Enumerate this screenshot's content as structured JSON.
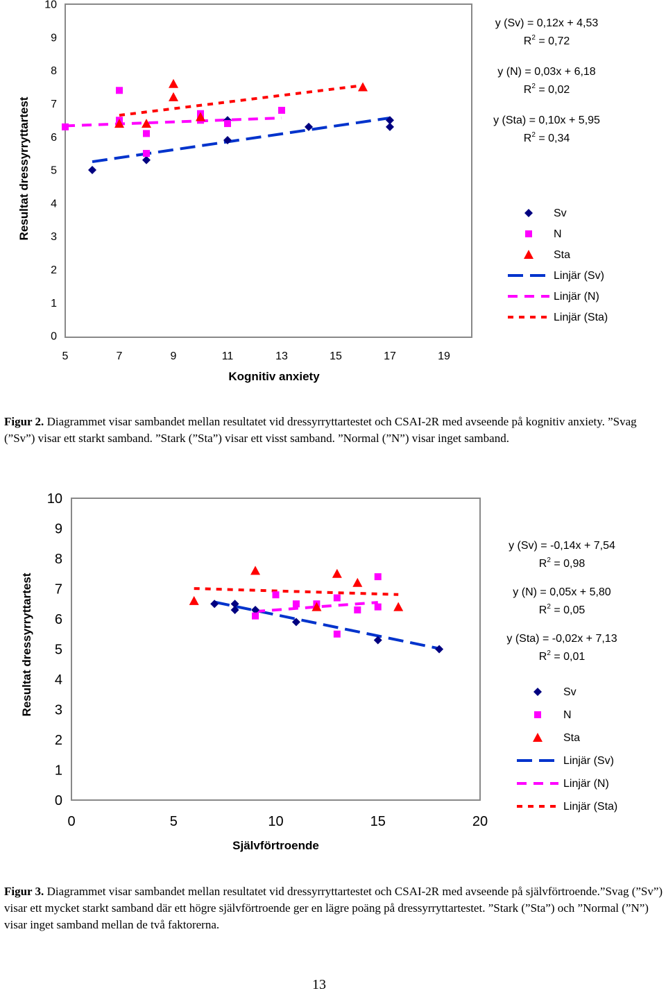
{
  "charts": [
    {
      "type": "scatter",
      "xlabel": "Kognitiv anxiety",
      "ylabel": "Resultat dressyrryttartest",
      "xlim": [
        5,
        19
      ],
      "ylim": [
        0,
        10
      ],
      "xticks": [
        5,
        7,
        9,
        11,
        13,
        15,
        17,
        19
      ],
      "yticks": [
        0,
        1,
        2,
        3,
        4,
        5,
        6,
        7,
        8,
        9,
        10
      ],
      "colors": {
        "Sv": "#000080",
        "N": "#FF00FF",
        "Sta": "#FF0000",
        "trend_Sv": "#0033CC",
        "trend_N": "#FF00FF",
        "trend_Sta": "#FF0000"
      },
      "series": [
        {
          "name": "Sv",
          "marker": "diamond",
          "color": "#000080",
          "points": [
            [
              6,
              5.0
            ],
            [
              8,
              5.3
            ],
            [
              11,
              6.5
            ],
            [
              11,
              5.9
            ],
            [
              14,
              6.3
            ],
            [
              17,
              6.5
            ],
            [
              17,
              6.3
            ]
          ]
        },
        {
          "name": "N",
          "marker": "square",
          "color": "#FF00FF",
          "points": [
            [
              5,
              6.3
            ],
            [
              7,
              7.4
            ],
            [
              7,
              6.5
            ],
            [
              8,
              6.1
            ],
            [
              8,
              5.5
            ],
            [
              10,
              6.7
            ],
            [
              10,
              6.5
            ],
            [
              11,
              6.4
            ],
            [
              13,
              6.8
            ]
          ]
        },
        {
          "name": "Sta",
          "marker": "triangle",
          "color": "#FF0000",
          "points": [
            [
              7,
              6.4
            ],
            [
              8,
              6.4
            ],
            [
              9,
              7.6
            ],
            [
              9,
              7.2
            ],
            [
              10,
              6.6
            ],
            [
              16,
              7.5
            ]
          ]
        }
      ],
      "trendlines": [
        {
          "name": "Linjär (Sv)",
          "color": "#0033CC",
          "dash": "long",
          "x": [
            6,
            17
          ],
          "slope": 0.12,
          "intercept": 4.53
        },
        {
          "name": "Linjär (N)",
          "color": "#FF00FF",
          "dash": "medium",
          "x": [
            5,
            13
          ],
          "slope": 0.03,
          "intercept": 6.18
        },
        {
          "name": "Linjär (Sta)",
          "color": "#FF0000",
          "dash": "short",
          "x": [
            7,
            16
          ],
          "slope": 0.1,
          "intercept": 5.95
        }
      ],
      "equations": [
        {
          "eq": "y (Sv) = 0,12x + 4,53",
          "r2_prefix": "R",
          "r2_sup": "2",
          "r2_value": " = 0,72"
        },
        {
          "eq": "y (N) = 0,03x + 6,18",
          "r2_prefix": "R",
          "r2_sup": "2",
          "r2_value": " = 0,02"
        },
        {
          "eq": "y (Sta) = 0,10x + 5,95",
          "r2_prefix": "R",
          "r2_sup": "2",
          "r2_value": " = 0,34"
        }
      ],
      "legend": [
        "Sv",
        "N",
        "Sta",
        "Linjär (Sv)",
        "Linjär (N)",
        "Linjär (Sta)"
      ]
    },
    {
      "type": "scatter",
      "xlabel": "Självförtroende",
      "ylabel": "Resultat dressyrryttartest",
      "xlim": [
        0,
        20
      ],
      "ylim": [
        0,
        10
      ],
      "xticks": [
        0,
        5,
        10,
        15,
        20
      ],
      "yticks": [
        0,
        1,
        2,
        3,
        4,
        5,
        6,
        7,
        8,
        9,
        10
      ],
      "colors": {
        "Sv": "#000080",
        "N": "#FF00FF",
        "Sta": "#FF0000",
        "trend_Sv": "#0033CC",
        "trend_N": "#FF00FF",
        "trend_Sta": "#FF0000"
      },
      "series": [
        {
          "name": "Sv",
          "marker": "diamond",
          "color": "#000080",
          "points": [
            [
              7,
              6.5
            ],
            [
              8,
              6.5
            ],
            [
              8,
              6.3
            ],
            [
              9,
              6.3
            ],
            [
              11,
              5.9
            ],
            [
              15,
              5.3
            ],
            [
              18,
              5.0
            ]
          ]
        },
        {
          "name": "N",
          "marker": "square",
          "color": "#FF00FF",
          "points": [
            [
              9,
              6.1
            ],
            [
              10,
              6.8
            ],
            [
              11,
              6.5
            ],
            [
              12,
              6.5
            ],
            [
              13,
              6.7
            ],
            [
              13,
              5.5
            ],
            [
              14,
              6.3
            ],
            [
              15,
              7.4
            ],
            [
              15,
              6.4
            ]
          ]
        },
        {
          "name": "Sta",
          "marker": "triangle",
          "color": "#FF0000",
          "points": [
            [
              6,
              6.6
            ],
            [
              9,
              7.6
            ],
            [
              12,
              6.4
            ],
            [
              13,
              7.5
            ],
            [
              14,
              7.2
            ],
            [
              16,
              6.4
            ]
          ]
        }
      ],
      "trendlines": [
        {
          "name": "Linjär (Sv)",
          "color": "#0033CC",
          "dash": "long",
          "x": [
            7,
            18
          ],
          "slope": -0.14,
          "intercept": 7.54
        },
        {
          "name": "Linjär (N)",
          "color": "#FF00FF",
          "dash": "medium",
          "x": [
            9,
            15
          ],
          "slope": 0.05,
          "intercept": 5.8
        },
        {
          "name": "Linjär (Sta)",
          "color": "#FF0000",
          "dash": "short",
          "x": [
            6,
            16
          ],
          "slope": -0.02,
          "intercept": 7.13
        }
      ],
      "equations": [
        {
          "eq": "y (Sv) = -0,14x + 7,54",
          "r2_prefix": "R",
          "r2_sup": "2",
          "r2_value": " = 0,98"
        },
        {
          "eq": "y (N) = 0,05x + 5,80",
          "r2_prefix": "R",
          "r2_sup": "2",
          "r2_value": " = 0,05"
        },
        {
          "eq": "y (Sta) = -0,02x + 7,13",
          "r2_prefix": "R",
          "r2_sup": "2",
          "r2_value": " = 0,01"
        }
      ],
      "legend": [
        "Sv",
        "N",
        "Sta",
        "Linjär (Sv)",
        "Linjär (N)",
        "Linjär (Sta)"
      ]
    }
  ],
  "captions": [
    {
      "label": "Figur 2.",
      "text": " Diagrammet visar sambandet mellan resultatet vid dressyrryttartestet och CSAI-2R med avseende på kognitiv anxiety. ”Svag (”Sv”) visar ett starkt samband. ”Stark (”Sta”) visar ett visst samband. ”Normal (”N”) visar inget samband."
    },
    {
      "label": "Figur 3.",
      "text": " Diagrammet visar sambandet mellan resultatet vid dressyrryttartestet och CSAI-2R med avseende på självförtroende.”Svag (”Sv”) visar ett mycket starkt samband där ett högre självförtroende ger en lägre poäng på dressyrryttartestet. ”Stark (”Sta”) och ”Normal (”N”) visar inget samband mellan de två faktorerna."
    }
  ],
  "page_number": "13"
}
